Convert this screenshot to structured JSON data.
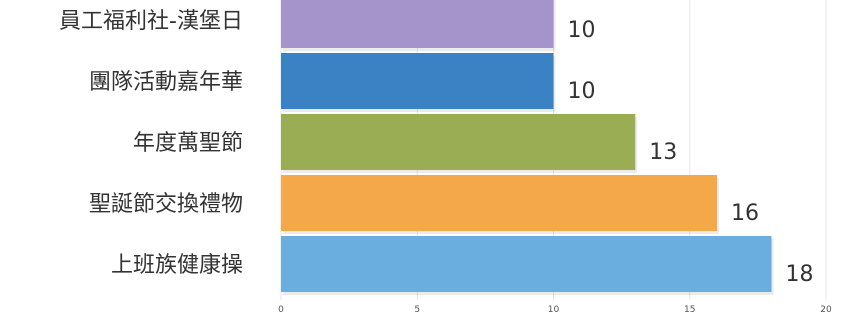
{
  "chart_data": {
    "type": "bar",
    "orientation": "horizontal",
    "categories": [
      "員工福利社-漢堡日",
      "團隊活動嘉年華",
      "年度萬聖節",
      "聖誕節交換禮物",
      "上班族健康操"
    ],
    "values": [
      10,
      10,
      13,
      16,
      18
    ],
    "value_labels": [
      "10",
      "10",
      "13",
      "16",
      "18"
    ],
    "colors": [
      "#a593cc",
      "#3a82c4",
      "#9aad55",
      "#f5a84a",
      "#6aaee0"
    ],
    "title": "",
    "xlabel": "",
    "ylabel": "",
    "xlim": [
      0,
      20
    ],
    "xticks": [
      0,
      5,
      10,
      15,
      20
    ],
    "xtick_labels": [
      "0",
      "5",
      "10",
      "15",
      "20"
    ],
    "grid": true
  }
}
